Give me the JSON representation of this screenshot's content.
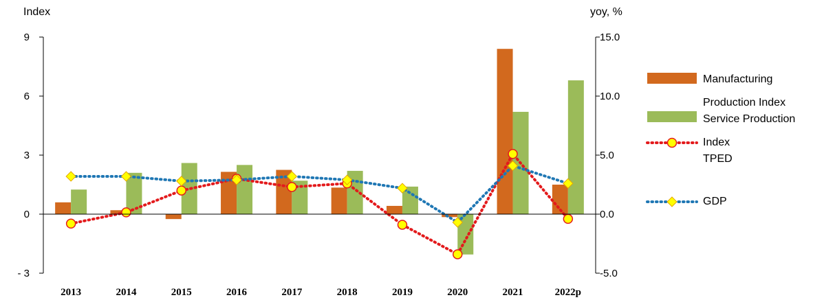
{
  "chart_data": {
    "type": "bar",
    "categories": [
      "2013",
      "2014",
      "2015",
      "2016",
      "2017",
      "2018",
      "2019",
      "2020",
      "2021",
      "2022p"
    ],
    "left_axis": {
      "label": "Index",
      "ylim": [
        -3,
        9
      ],
      "ticks": [
        "- 3",
        "0",
        "3",
        "6",
        "9"
      ],
      "tick_values": [
        -3,
        0,
        3,
        6,
        9
      ]
    },
    "right_axis": {
      "label": "yoy, %",
      "ylim": [
        -5,
        15
      ],
      "ticks": [
        "-5.0",
        "0.0",
        "5.0",
        "10.0",
        "15.0"
      ],
      "tick_values": [
        -5,
        0,
        5,
        10,
        15
      ]
    },
    "series": [
      {
        "name": "Manufacturing Production Index",
        "legend_lines": [
          "Manufacturing",
          "Production Index"
        ],
        "kind": "bar",
        "axis": "left",
        "color": "#D2691E",
        "values": [
          0.6,
          0.2,
          -0.25,
          2.15,
          2.25,
          1.35,
          0.42,
          -0.15,
          8.4,
          1.5
        ]
      },
      {
        "name": "Service Production Index",
        "legend_lines": [
          "Service Production",
          "Index"
        ],
        "kind": "bar",
        "axis": "left",
        "color": "#9BBB59",
        "values": [
          1.25,
          2.1,
          2.6,
          2.5,
          1.7,
          2.2,
          1.4,
          -2.05,
          5.2,
          6.8
        ]
      },
      {
        "name": "TPED",
        "legend_lines": [
          "TPED"
        ],
        "kind": "line",
        "axis": "right",
        "color": "#E31A1C",
        "marker": "circle",
        "marker_fill": "#FFFF00",
        "values": [
          -0.8,
          0.15,
          2.0,
          3.0,
          2.3,
          2.6,
          -0.9,
          -3.4,
          5.1,
          -0.4
        ]
      },
      {
        "name": "GDP",
        "legend_lines": [
          "GDP"
        ],
        "kind": "line",
        "axis": "right",
        "color": "#1F77B4",
        "marker": "diamond",
        "marker_fill": "#FFFF00",
        "values": [
          3.2,
          3.2,
          2.8,
          2.9,
          3.2,
          2.9,
          2.2,
          -0.7,
          4.1,
          2.6
        ]
      }
    ],
    "legend": "right",
    "grid": false
  }
}
